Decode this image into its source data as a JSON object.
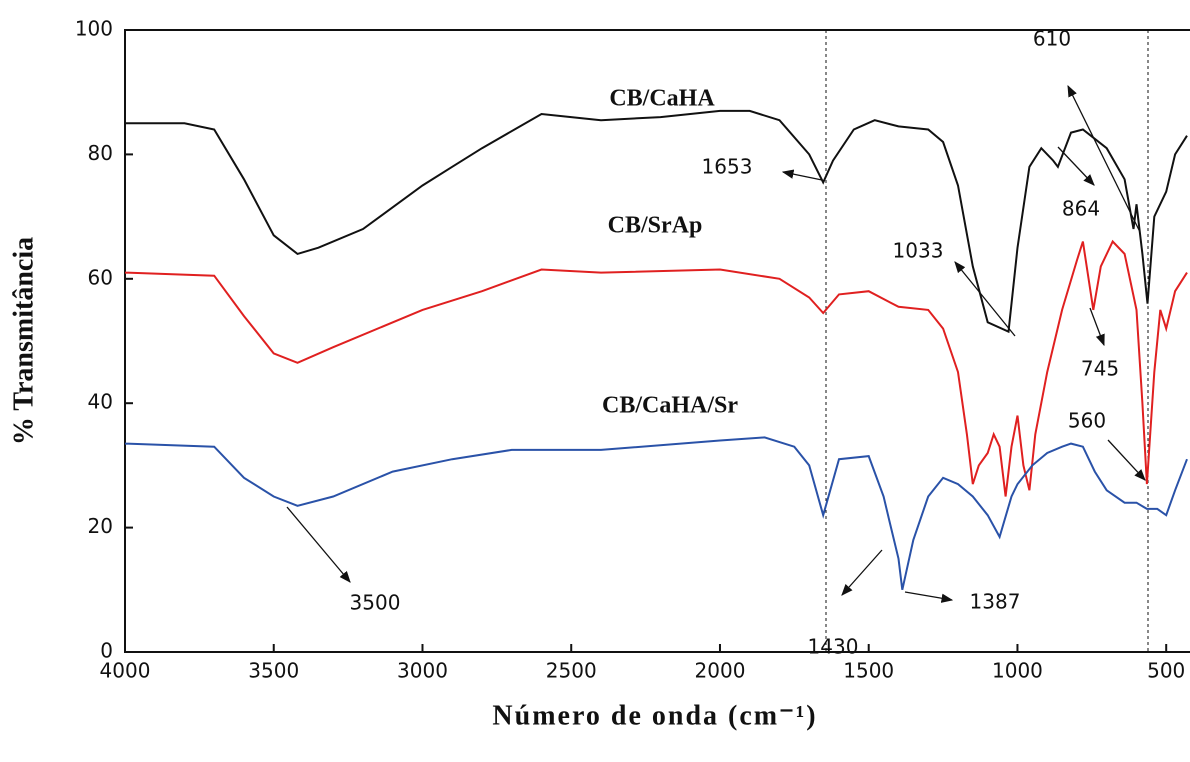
{
  "chart_data": {
    "type": "line",
    "xlabel": "Número de onda (cm⁻¹)",
    "ylabel": "% Transmitância",
    "xlim": [
      4000,
      420
    ],
    "ylim": [
      0,
      100
    ],
    "xticks": [
      4000,
      3500,
      3000,
      2500,
      2000,
      1500,
      1000,
      500
    ],
    "yticks": [
      0,
      20,
      40,
      60,
      80,
      100
    ],
    "series": [
      {
        "name": "CB/CaHA",
        "color": "#111111",
        "x": [
          4000,
          3800,
          3700,
          3600,
          3500,
          3420,
          3350,
          3200,
          3000,
          2900,
          2800,
          2600,
          2500,
          2400,
          2200,
          2000,
          1900,
          1800,
          1700,
          1653,
          1620,
          1550,
          1480,
          1400,
          1300,
          1250,
          1200,
          1150,
          1100,
          1030,
          1000,
          960,
          920,
          880,
          864,
          820,
          780,
          700,
          640,
          610,
          600,
          580,
          563,
          540,
          500,
          470,
          430
        ],
        "values": [
          85,
          85,
          84,
          76,
          67,
          64,
          65,
          68,
          75,
          78,
          81,
          86.5,
          86,
          85.5,
          86,
          87,
          87,
          85.5,
          80,
          75.5,
          79,
          84,
          85.5,
          84.5,
          84,
          82,
          75,
          62,
          53,
          51.5,
          65,
          78,
          81,
          79,
          78,
          83.5,
          84,
          81,
          76,
          68,
          72,
          64,
          56,
          70,
          74,
          80,
          83
        ]
      },
      {
        "name": "CB/SrAp",
        "color": "#e02020",
        "x": [
          4000,
          3700,
          3600,
          3500,
          3420,
          3300,
          3000,
          2800,
          2600,
          2400,
          2000,
          1800,
          1700,
          1653,
          1600,
          1500,
          1400,
          1300,
          1250,
          1200,
          1170,
          1150,
          1130,
          1100,
          1080,
          1060,
          1040,
          1020,
          1000,
          980,
          960,
          940,
          900,
          850,
          800,
          780,
          745,
          720,
          680,
          640,
          600,
          580,
          565,
          540,
          520,
          500,
          470,
          430
        ],
        "values": [
          61,
          60.5,
          54,
          48,
          46.5,
          49,
          55,
          58,
          61.5,
          61,
          61.5,
          60,
          57,
          54.5,
          57.5,
          58,
          55.5,
          55,
          52,
          45,
          35,
          27,
          30,
          32,
          35,
          33,
          25,
          33,
          38,
          30,
          26,
          35,
          45,
          55,
          63,
          66,
          55,
          62,
          66,
          64,
          55,
          40,
          27,
          45,
          55,
          52,
          58,
          61
        ]
      },
      {
        "name": "CB/CaHA/Sr",
        "color": "#2a52a8",
        "x": [
          4000,
          3700,
          3600,
          3500,
          3420,
          3300,
          3100,
          2900,
          2700,
          2400,
          2000,
          1850,
          1750,
          1700,
          1653,
          1600,
          1500,
          1450,
          1430,
          1400,
          1387,
          1350,
          1300,
          1250,
          1200,
          1150,
          1100,
          1060,
          1020,
          1000,
          950,
          900,
          850,
          820,
          780,
          740,
          700,
          640,
          600,
          565,
          530,
          500,
          470,
          430
        ],
        "values": [
          33.5,
          33,
          28,
          25,
          23.5,
          25,
          29,
          31,
          32.5,
          32.5,
          34,
          34.5,
          33,
          30,
          22,
          31,
          31.5,
          25,
          21,
          15,
          10,
          18,
          25,
          28,
          27,
          25,
          22,
          18.5,
          25,
          27,
          30,
          32,
          33,
          33.5,
          33,
          29,
          26,
          24,
          24,
          23,
          23,
          22,
          26,
          31
        ]
      }
    ],
    "annotations": [
      "1653",
      "610",
      "864",
      "1033",
      "745",
      "560",
      "3500",
      "1430",
      "1387"
    ]
  }
}
